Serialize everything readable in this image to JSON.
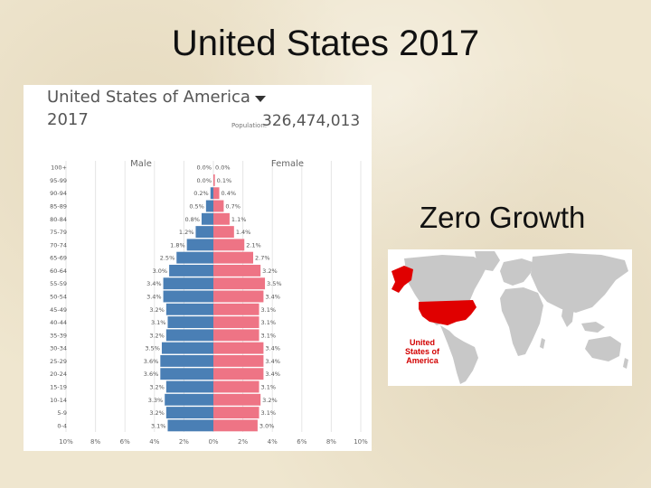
{
  "slide": {
    "title": "United States 2017",
    "subtitle": "Zero Growth"
  },
  "pyramid": {
    "country": "United States of America",
    "year": "2017",
    "population_label": "Population:",
    "population": "326,474,013"
  },
  "map": {
    "label_lines": [
      "United",
      "States of",
      "America"
    ],
    "highlight_color": "#e00000",
    "land_color": "#c8c8c8"
  },
  "colors": {
    "male": "#4a7fb5",
    "female": "#ee7485"
  },
  "chart_data": {
    "type": "bar",
    "orientation": "horizontal",
    "categories": [
      "0-4",
      "5-9",
      "10-14",
      "15-19",
      "20-24",
      "25-29",
      "30-34",
      "35-39",
      "40-44",
      "45-49",
      "50-54",
      "55-59",
      "60-64",
      "65-69",
      "70-74",
      "75-79",
      "80-84",
      "85-89",
      "90-94",
      "95-99",
      "100+"
    ],
    "series": [
      {
        "name": "Male",
        "values": [
          3.1,
          3.2,
          3.3,
          3.2,
          3.6,
          3.6,
          3.5,
          3.2,
          3.1,
          3.2,
          3.4,
          3.4,
          3.0,
          2.5,
          1.8,
          1.2,
          0.8,
          0.5,
          0.2,
          0.0,
          0.0
        ]
      },
      {
        "name": "Female",
        "values": [
          3.0,
          3.1,
          3.2,
          3.1,
          3.4,
          3.4,
          3.4,
          3.1,
          3.1,
          3.1,
          3.4,
          3.5,
          3.2,
          2.7,
          2.1,
          1.4,
          1.1,
          0.7,
          0.4,
          0.1,
          0.0
        ]
      }
    ],
    "value_labels": {
      "Male": [
        "3.1%",
        "3.2%",
        "3.3%",
        "3.2%",
        "3.6%",
        "3.6%",
        "3.5%",
        "3.2%",
        "3.1%",
        "3.2%",
        "3.4%",
        "3.4%",
        "3.0%",
        "2.5%",
        "1.8%",
        "1.2%",
        "0.8%",
        "0.5%",
        "0.2%",
        "0.0%",
        "0.0%"
      ],
      "Female": [
        "3.0%",
        "3.1%",
        "3.2%",
        "3.1%",
        "3.4%",
        "3.4%",
        "3.4%",
        "3.1%",
        "3.1%",
        "3.1%",
        "3.4%",
        "3.5%",
        "3.2%",
        "2.7%",
        "2.1%",
        "1.4%",
        "1.1%",
        "0.7%",
        "0.4%",
        "0.1%",
        "0.0%"
      ]
    },
    "xticks": [
      "10%",
      "8%",
      "6%",
      "4%",
      "2%",
      "0%",
      "2%",
      "4%",
      "6%",
      "8%",
      "10%"
    ],
    "xlim": [
      -10,
      10
    ],
    "legend": [
      "Male",
      "Female"
    ],
    "grid": true
  }
}
